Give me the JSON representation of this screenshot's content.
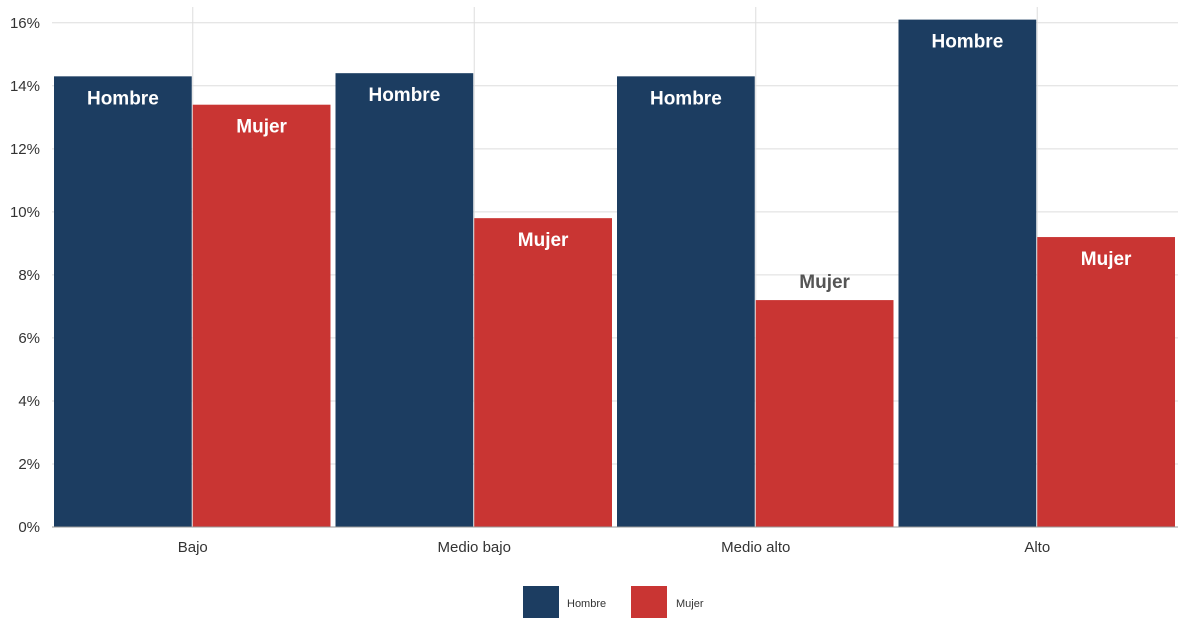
{
  "chart_data": {
    "type": "bar",
    "categories": [
      "Bajo",
      "Medio bajo",
      "Medio alto",
      "Alto"
    ],
    "series": [
      {
        "name": "Hombre",
        "values": [
          14.3,
          14.4,
          14.3,
          16.1
        ],
        "color": "#1c3d61"
      },
      {
        "name": "Mujer",
        "values": [
          13.4,
          9.8,
          7.2,
          9.2
        ],
        "color": "#c93533"
      }
    ],
    "y_ticks": [
      "0%",
      "2%",
      "4%",
      "6%",
      "8%",
      "10%",
      "12%",
      "14%",
      "16%"
    ],
    "ylim": [
      0,
      16.5
    ],
    "grid": true,
    "legend_position": "bottom-center",
    "data_labels": true,
    "title": "",
    "xlabel": "",
    "ylabel": ""
  }
}
